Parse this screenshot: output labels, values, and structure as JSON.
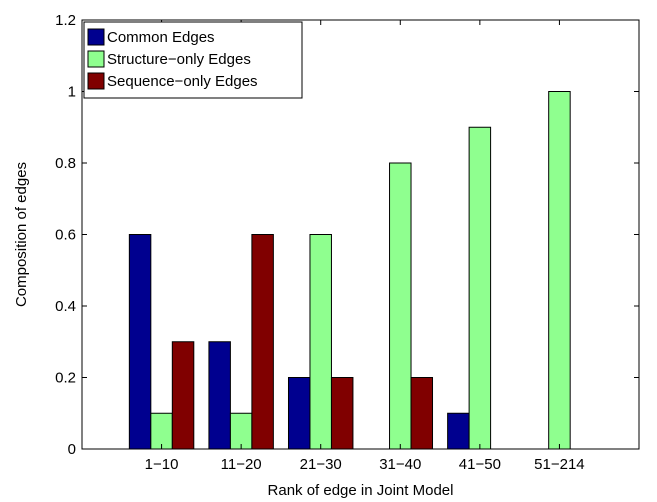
{
  "chart_data": {
    "type": "bar",
    "title": "",
    "xlabel": "Rank of edge in Joint Model",
    "ylabel": "Composition of edges",
    "ylim": [
      0,
      1.2
    ],
    "yticks": [
      "0",
      "0.2",
      "0.4",
      "0.6",
      "0.8",
      "1",
      "1.2"
    ],
    "categories": [
      "1−10",
      "11−20",
      "21−30",
      "31−40",
      "41−50",
      "51−214"
    ],
    "series": [
      {
        "name": "Common Edges",
        "color": "#00008f",
        "values": [
          0.6,
          0.3,
          0.2,
          0,
          0.1,
          0
        ]
      },
      {
        "name": "Structure−only Edges",
        "color": "#8fff8f",
        "values": [
          0.1,
          0.1,
          0.6,
          0.8,
          0.9,
          1.0
        ]
      },
      {
        "name": "Sequence−only Edges",
        "color": "#800000",
        "values": [
          0.3,
          0.6,
          0.2,
          0.2,
          0,
          0
        ]
      }
    ],
    "legend_position": "top-left",
    "grid": false
  }
}
